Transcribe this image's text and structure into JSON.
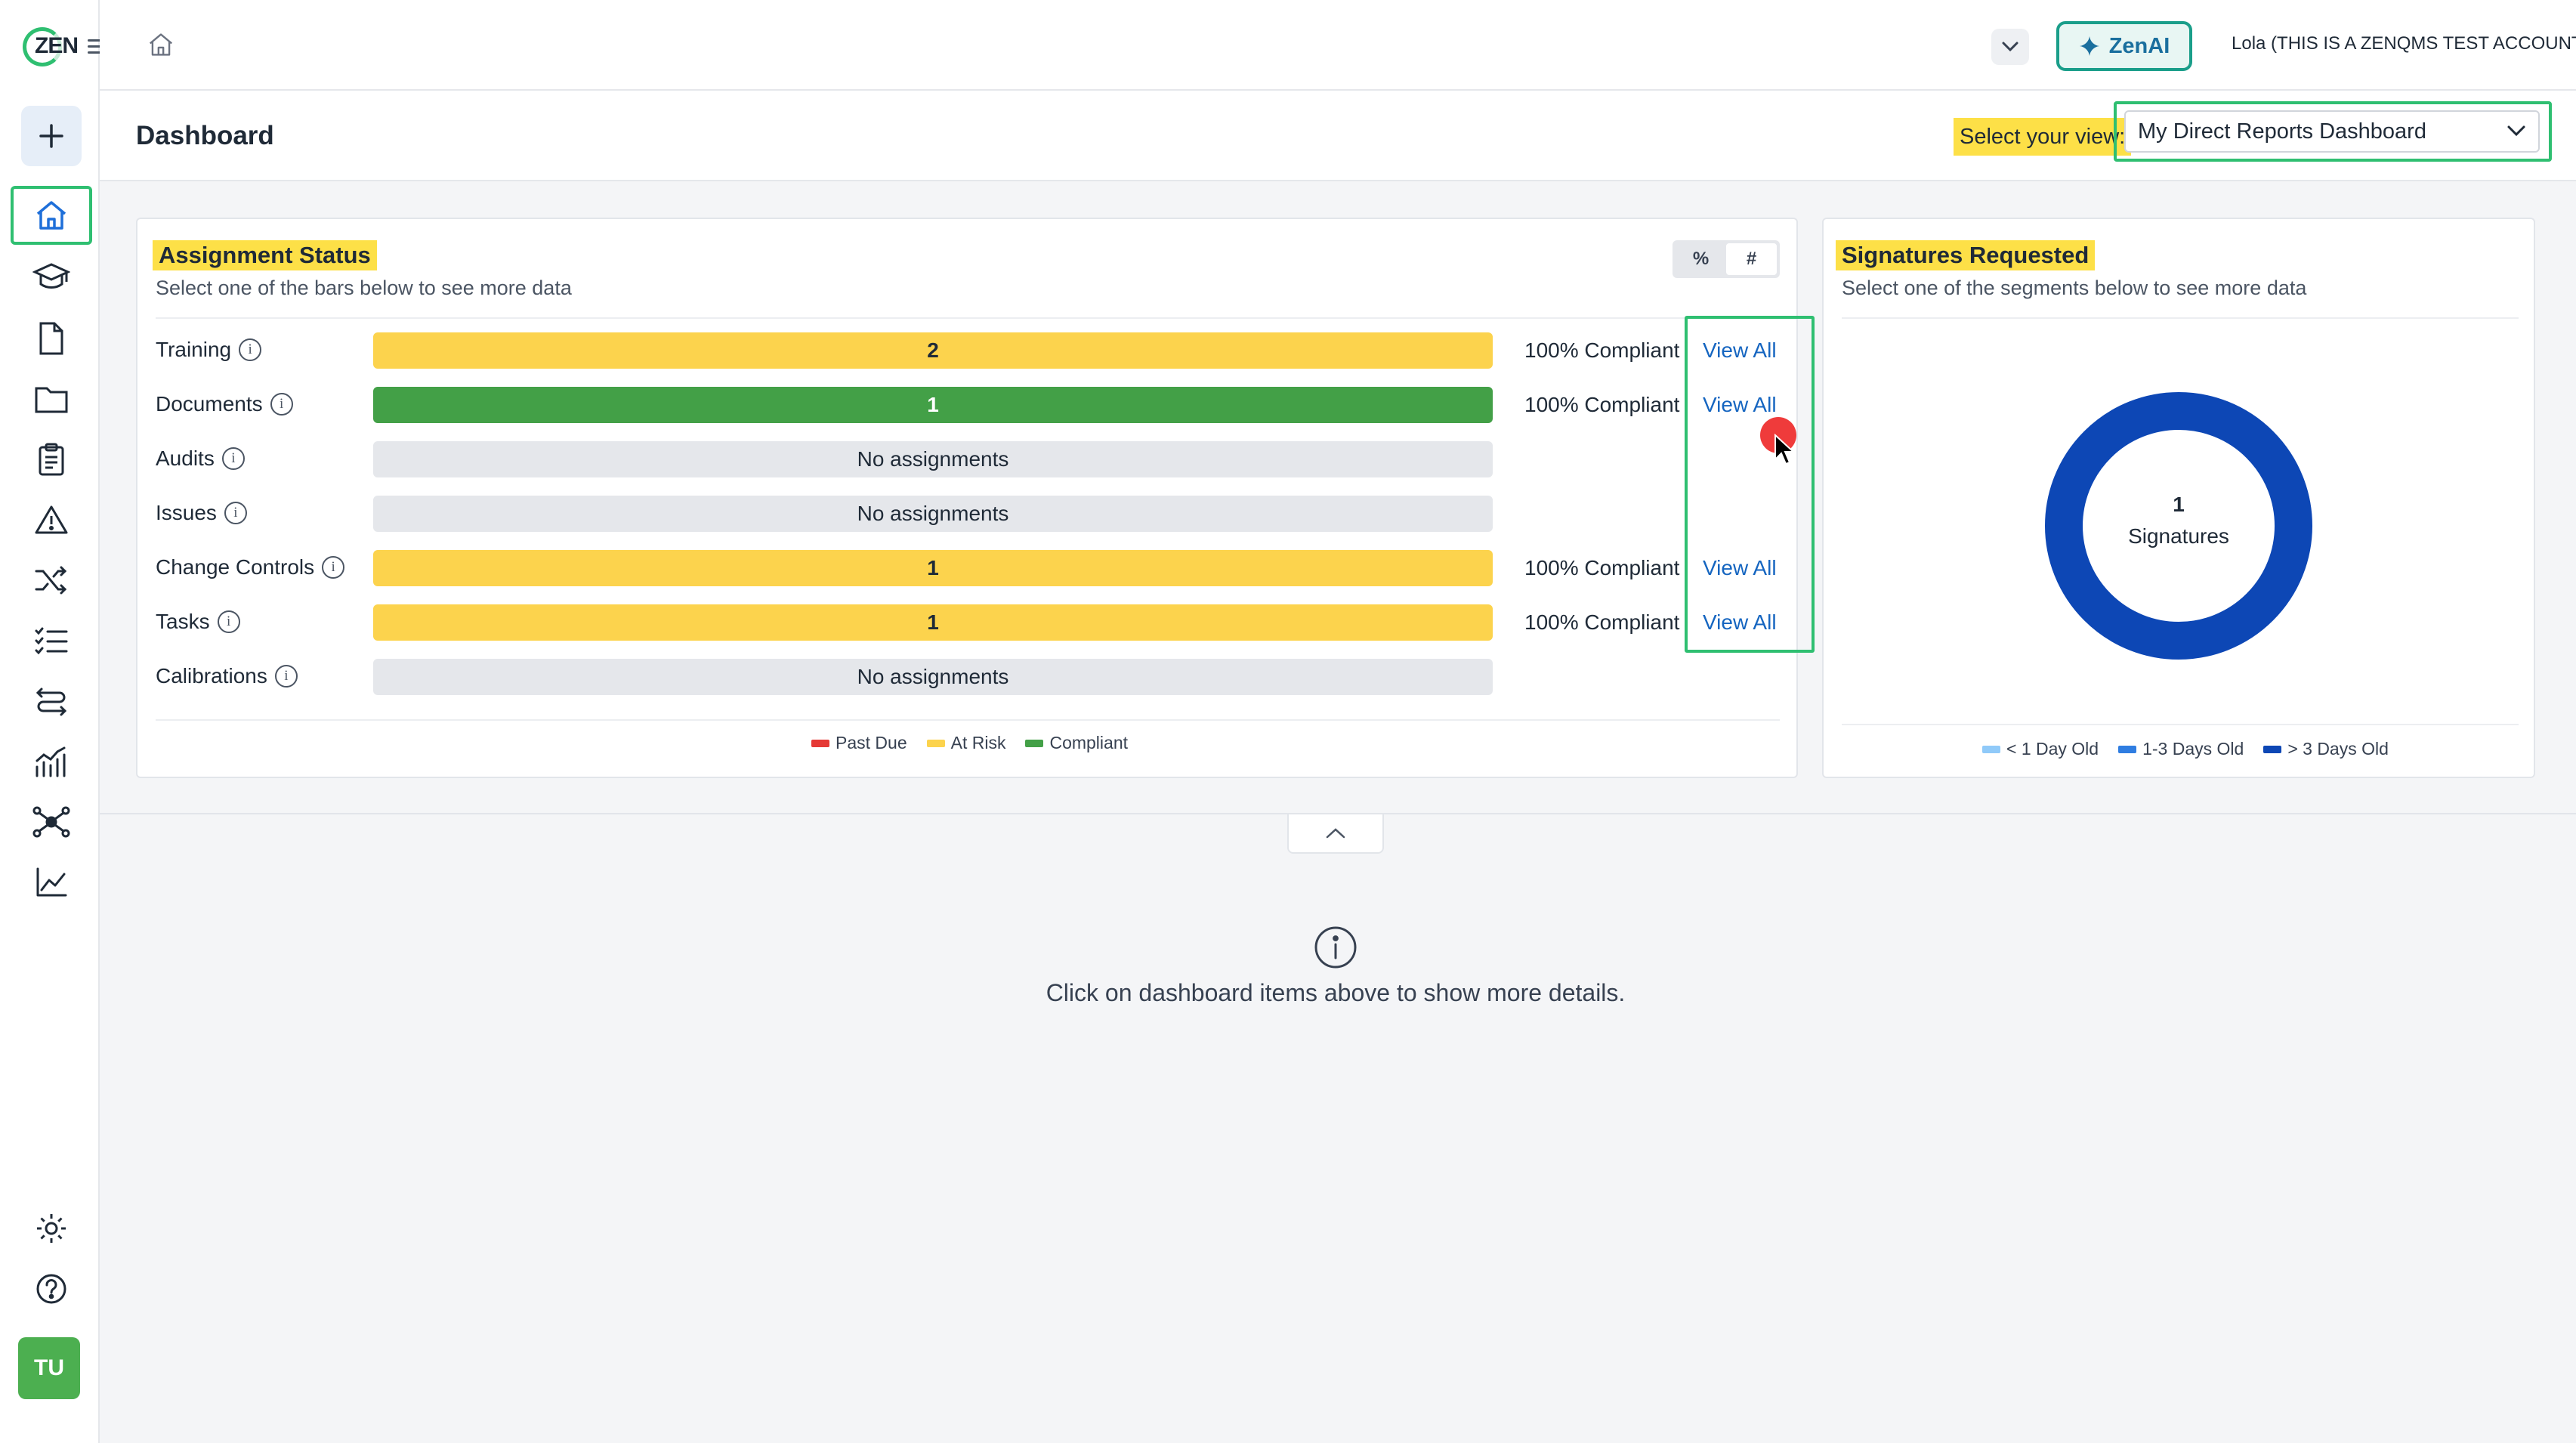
{
  "app": {
    "logo_text": "ZEN",
    "user_name": "Lola (THIS IS A ZENQMS TEST ACCOUNT)",
    "zenai_label": "ZenAI",
    "avatar_initials": "TU"
  },
  "sidebar": {
    "items": [
      {
        "name": "home-icon",
        "active": true
      },
      {
        "name": "training-icon"
      },
      {
        "name": "document-icon"
      },
      {
        "name": "folder-icon"
      },
      {
        "name": "clipboard-icon"
      },
      {
        "name": "warning-icon"
      },
      {
        "name": "shuffle-icon"
      },
      {
        "name": "checklist-icon"
      },
      {
        "name": "route-icon"
      },
      {
        "name": "chart-icon"
      },
      {
        "name": "network-icon"
      },
      {
        "name": "analytics-icon"
      }
    ]
  },
  "header": {
    "title": "Dashboard",
    "view_label": "Select your view:",
    "view_selected": "My Direct Reports Dashboard"
  },
  "assignment_status": {
    "title": "Assignment Status",
    "subtitle": "Select one of the bars below to see more data",
    "toggle": {
      "percent": "%",
      "count": "#",
      "selected": "#"
    },
    "rows": [
      {
        "label": "Training",
        "value": "2",
        "status": "at-risk",
        "compliance": "100% Compliant",
        "link": "View All"
      },
      {
        "label": "Documents",
        "value": "1",
        "status": "compliant",
        "compliance": "100% Compliant",
        "link": "View All"
      },
      {
        "label": "Audits",
        "value": "No assignments",
        "status": "none",
        "compliance": "",
        "link": ""
      },
      {
        "label": "Issues",
        "value": "No assignments",
        "status": "none",
        "compliance": "",
        "link": ""
      },
      {
        "label": "Change Controls",
        "value": "1",
        "status": "at-risk",
        "compliance": "100% Compliant",
        "link": "View All"
      },
      {
        "label": "Tasks",
        "value": "1",
        "status": "at-risk",
        "compliance": "100% Compliant",
        "link": "View All"
      },
      {
        "label": "Calibrations",
        "value": "No assignments",
        "status": "none",
        "compliance": "",
        "link": ""
      }
    ],
    "legend": [
      {
        "label": "Past Due",
        "color": "#e53935"
      },
      {
        "label": "At Risk",
        "color": "#fcd34d"
      },
      {
        "label": "Compliant",
        "color": "#43a047"
      }
    ]
  },
  "signatures": {
    "title": "Signatures Requested",
    "subtitle": "Select one of the segments below to see more data",
    "total": "1",
    "total_label": "Signatures",
    "donut_color": "#0d47b5",
    "legend": [
      {
        "label": "< 1 Day Old",
        "color": "#90caf9"
      },
      {
        "label": "1-3 Days Old",
        "color": "#2f7de1"
      },
      {
        "label": "> 3 Days Old",
        "color": "#0d47b5"
      }
    ]
  },
  "details": {
    "message": "Click on dashboard items above to show more details."
  }
}
